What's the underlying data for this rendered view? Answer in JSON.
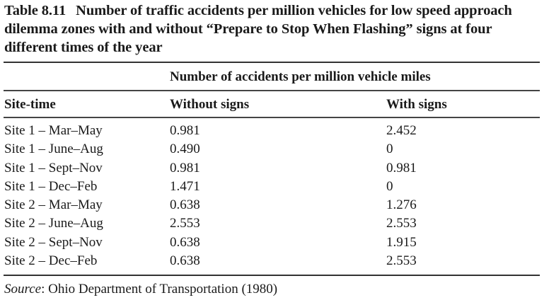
{
  "caption": {
    "label": "Table 8.11",
    "text": "Number of traffic accidents per million vehicles for low speed approach dilemma zones with and without “Prepare to Stop When Flash­ing” signs at four different times of the year"
  },
  "table": {
    "group_header": "Number of accidents per million vehicle miles",
    "columns": [
      "Site-time",
      "Without signs",
      "With signs"
    ],
    "rows": [
      [
        "Site 1 – Mar–May",
        "0.981",
        "2.452"
      ],
      [
        "Site 1 – June–Aug",
        "0.490",
        "0"
      ],
      [
        "Site 1 – Sept–Nov",
        "0.981",
        "0.981"
      ],
      [
        "Site 1 – Dec–Feb",
        "1.471",
        "0"
      ],
      [
        "Site 2 – Mar–May",
        "0.638",
        "1.276"
      ],
      [
        "Site 2 – June–Aug",
        "2.553",
        "2.553"
      ],
      [
        "Site 2 – Sept–Nov",
        "0.638",
        "1.915"
      ],
      [
        "Site 2 – Dec–Feb",
        "0.638",
        "2.553"
      ]
    ]
  },
  "source": {
    "label": "Source",
    "text": ": Ohio Department of Transportation (1980)"
  }
}
